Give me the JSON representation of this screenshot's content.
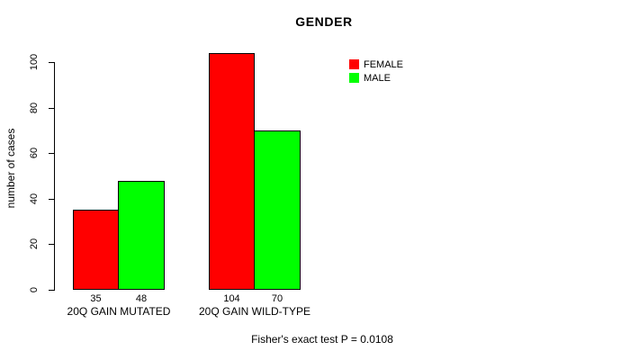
{
  "chart_data": {
    "type": "bar",
    "title": "GENDER",
    "ylabel": "number of cases",
    "xlabel": "",
    "categories": [
      "20Q GAIN MUTATED",
      "20Q GAIN WILD-TYPE"
    ],
    "series": [
      {
        "name": "FEMALE",
        "color": "#ff0000",
        "values": [
          35,
          104
        ]
      },
      {
        "name": "MALE",
        "color": "#00ff00",
        "values": [
          48,
          70
        ]
      }
    ],
    "y_ticks": [
      0,
      20,
      40,
      60,
      80,
      100
    ],
    "ylim": [
      0,
      104
    ],
    "grid": false,
    "show_bar_values": true,
    "legend_position": "top-right",
    "footnote": "Fisher's exact test P = 0.0108"
  },
  "colors": {
    "background": "#ffffff",
    "text": "#000000",
    "axis": "#000000",
    "female": "#ff0000",
    "male": "#00ff00"
  }
}
